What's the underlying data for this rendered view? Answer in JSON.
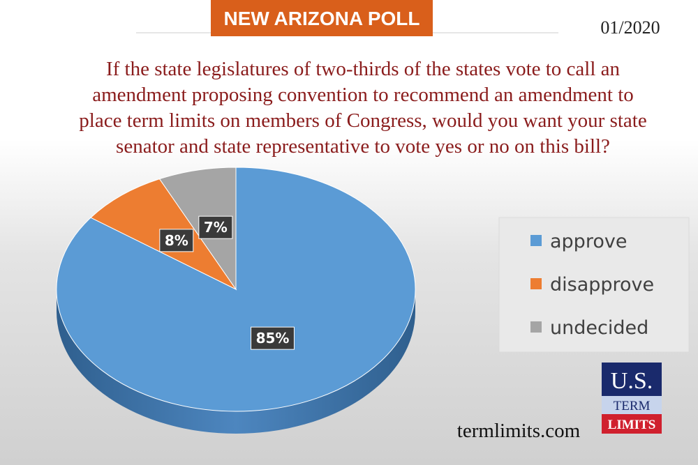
{
  "header": {
    "title": "NEW ARIZONA POLL",
    "date": "01/2020"
  },
  "chart_data": {
    "type": "pie",
    "title_lines": [
      "If the state legislatures of two-thirds of the states vote to call an",
      "amendment proposing convention to recommend an amendment to",
      "place term limits on members of Congress, would you want your state",
      "senator and state representative to vote yes or no on this bill?"
    ],
    "categories": [
      "approve",
      "disapprove",
      "undecided"
    ],
    "values": [
      85,
      8,
      7
    ],
    "value_labels": [
      "85%",
      "8%",
      "7%"
    ],
    "colors": [
      "#5b9bd5",
      "#ed7d31",
      "#a5a5a5"
    ],
    "legend": "right"
  },
  "footer": {
    "website": "termlimits.com",
    "logo": [
      "U.S.",
      "TERM",
      "LIMITS"
    ]
  }
}
